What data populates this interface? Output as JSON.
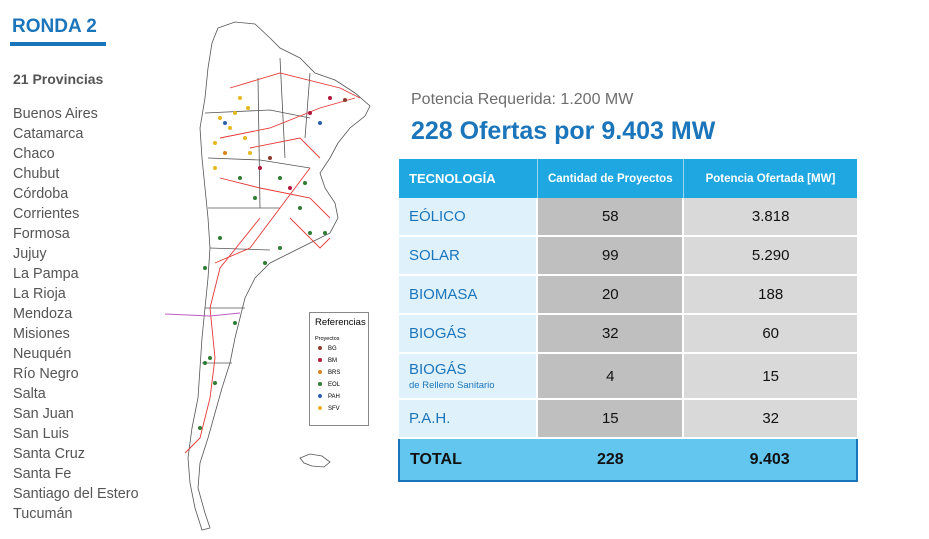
{
  "title": "RONDA 2",
  "provinces_count": "21 Provincias",
  "provinces": [
    "Buenos Aires",
    "Catamarca",
    "Chaco",
    "Chubut",
    "Córdoba",
    "Corrientes",
    "Formosa",
    "Jujuy",
    "La Pampa",
    "La Rioja",
    "Mendoza",
    "Misiones",
    "Neuquén",
    "Río Negro",
    "Salta",
    "San Juan",
    "San Luis",
    "Santa Cruz",
    "Santa Fe",
    "Santiago del Estero",
    "Tucumán"
  ],
  "subtitle": "Potencia Requerida: 1.200 MW",
  "headline": "228 Ofertas por 9.403 MW",
  "table": {
    "headers": [
      "TECNOLOGÍA",
      "Cantidad de Proyectos",
      "Potencia Ofertada [MW]"
    ],
    "rows": [
      {
        "label": "EÓLICO",
        "sub": "",
        "projects": "58",
        "power": "3.818"
      },
      {
        "label": "SOLAR",
        "sub": "",
        "projects": "99",
        "power": "5.290"
      },
      {
        "label": "BIOMASA",
        "sub": "",
        "projects": "20",
        "power": "188"
      },
      {
        "label": "BIOGÁS",
        "sub": "",
        "projects": "32",
        "power": "60"
      },
      {
        "label": "BIOGÁS",
        "sub": "de Relleno Sanitario",
        "projects": "4",
        "power": "15"
      },
      {
        "label": "P.A.H.",
        "sub": "",
        "projects": "15",
        "power": "32"
      }
    ],
    "total": {
      "label": "TOTAL",
      "projects": "228",
      "power": "9.403"
    }
  },
  "legend": {
    "title": "Referencias",
    "subtitle": "Proyectos",
    "items": [
      {
        "code": "BG",
        "color": "#8b3a2b"
      },
      {
        "code": "BM",
        "color": "#b0173a"
      },
      {
        "code": "BRS",
        "color": "#d9821e"
      },
      {
        "code": "EOL",
        "color": "#2e7d32"
      },
      {
        "code": "PAH",
        "color": "#2a62b0"
      },
      {
        "code": "SFV",
        "color": "#e6b820"
      }
    ]
  },
  "colors": {
    "accent": "#1b75bb",
    "header": "#1ea7e1",
    "total": "#63c6ef"
  }
}
